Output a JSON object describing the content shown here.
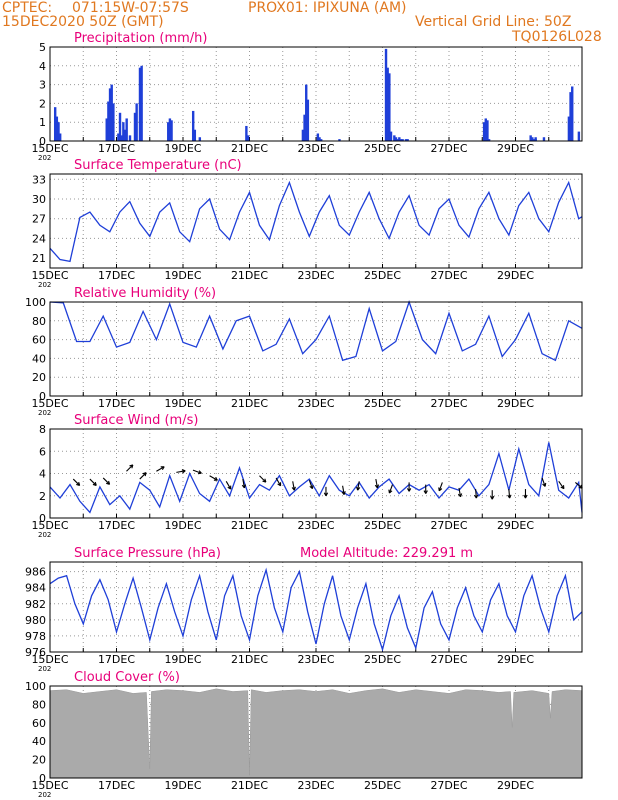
{
  "header": {
    "source": "CPTEC:",
    "coords": "071:15W-07:57S",
    "station": "PROX01: IPIXUNA (AM)",
    "run": "15DEC2020 50Z (GMT)",
    "vgrid": "Vertical Grid Line: 50Z",
    "code": "TQ0126L028"
  },
  "colors": {
    "title": "#e8007a",
    "header": "#e07820",
    "line": "#1f3fd8",
    "bar": "#1f3fd8",
    "cloud": "#aaaaaa"
  },
  "chart_data": [
    {
      "type": "bar",
      "title": "Precipitation (mm/h)",
      "ylim": [
        0,
        5
      ],
      "yticks": [
        "0",
        "1",
        "2",
        "3",
        "4",
        "5"
      ],
      "xticks": [
        "15DEC",
        "17DEC",
        "19DEC",
        "21DEC",
        "23DEC",
        "25DEC",
        "27DEC",
        "29DEC"
      ],
      "xsub": "202",
      "x_days": [
        0.15,
        0.2,
        0.25,
        0.3,
        1.7,
        1.75,
        1.8,
        1.85,
        1.9,
        2.05,
        2.1,
        2.15,
        2.2,
        2.25,
        2.3,
        2.4,
        2.55,
        2.6,
        2.7,
        2.75,
        3.55,
        3.6,
        3.65,
        4.3,
        4.35,
        4.5,
        5.9,
        5.95,
        7.6,
        7.65,
        7.7,
        7.75,
        8.05,
        8.1,
        8.15,
        8.7,
        10.1,
        10.15,
        10.2,
        10.25,
        10.35,
        10.4,
        10.45,
        10.5,
        10.55,
        10.6,
        10.7,
        10.75,
        13.05,
        13.1,
        13.15,
        13.2,
        14.45,
        14.5,
        14.55,
        14.6,
        14.85,
        15.6,
        15.65,
        15.7,
        14.6,
        15.9
      ],
      "values": [
        1.8,
        1.3,
        1.0,
        0.4,
        1.2,
        2.1,
        2.8,
        3.0,
        2.0,
        0.4,
        1.5,
        0.3,
        1.0,
        0.6,
        1.2,
        0.3,
        1.5,
        2.0,
        3.9,
        4.0,
        1.0,
        1.2,
        1.1,
        1.6,
        0.6,
        0.2,
        0.8,
        0.3,
        0.6,
        1.4,
        3.0,
        2.2,
        0.4,
        0.2,
        0.1,
        0.1,
        4.9,
        3.9,
        3.6,
        0.5,
        0.3,
        0.2,
        0.1,
        0.2,
        0.1,
        0.1,
        0.1,
        0.1,
        1.0,
        1.2,
        1.1,
        0.1,
        0.3,
        0.2,
        0.1,
        0.2,
        0.2,
        1.3,
        2.6,
        2.9,
        0.1,
        0.5
      ]
    },
    {
      "type": "line",
      "title": "Surface Temperature (nC)",
      "ylim": [
        19.5,
        33.8
      ],
      "yticks": [
        "21",
        "24",
        "27",
        "30",
        "33"
      ],
      "xticks": [
        "15DEC",
        "17DEC",
        "19DEC",
        "21DEC",
        "23DEC",
        "25DEC",
        "27DEC",
        "29DEC"
      ],
      "xsub": "202",
      "x_days": [
        0.0,
        0.3,
        0.6,
        0.9,
        1.2,
        1.5,
        1.8,
        2.1,
        2.4,
        2.7,
        3.0,
        3.3,
        3.6,
        3.9,
        4.2,
        4.5,
        4.8,
        5.1,
        5.4,
        5.7,
        6.0,
        6.3,
        6.6,
        6.9,
        7.2,
        7.5,
        7.8,
        8.1,
        8.4,
        8.7,
        9.0,
        9.3,
        9.6,
        9.9,
        10.2,
        10.5,
        10.8,
        11.1,
        11.4,
        11.7,
        12.0,
        12.3,
        12.6,
        12.9,
        13.2,
        13.5,
        13.8,
        14.1,
        14.4,
        14.7,
        15.0,
        15.3,
        15.6,
        15.9,
        16.0
      ],
      "values": [
        22.5,
        20.8,
        20.5,
        27.2,
        28.0,
        26.0,
        25.0,
        28.0,
        29.6,
        26.3,
        24.3,
        28.0,
        29.4,
        25.0,
        23.5,
        28.5,
        30.0,
        25.4,
        23.8,
        28.0,
        31.0,
        26.0,
        23.8,
        29.0,
        32.5,
        28.0,
        24.3,
        28.0,
        30.5,
        26.0,
        24.5,
        28.0,
        31.0,
        27.0,
        24.0,
        28.0,
        30.5,
        26.0,
        24.5,
        28.5,
        30.0,
        26.0,
        24.2,
        28.5,
        31.0,
        27.0,
        24.5,
        29.0,
        31.0,
        27.0,
        25.0,
        29.5,
        32.5,
        27.0,
        27.3
      ]
    },
    {
      "type": "line",
      "title": "Relative Humidity (%)",
      "ylim": [
        0,
        100
      ],
      "yticks": [
        "0",
        "20",
        "40",
        "60",
        "80",
        "100"
      ],
      "xticks": [
        "15DEC",
        "17DEC",
        "19DEC",
        "21DEC",
        "23DEC",
        "25DEC",
        "27DEC",
        "29DEC"
      ],
      "xsub": "202",
      "x_days": [
        0.0,
        0.4,
        0.8,
        1.2,
        1.6,
        2.0,
        2.4,
        2.8,
        3.2,
        3.6,
        4.0,
        4.4,
        4.8,
        5.2,
        5.6,
        6.0,
        6.4,
        6.8,
        7.2,
        7.6,
        8.0,
        8.4,
        8.8,
        9.2,
        9.6,
        10.0,
        10.4,
        10.8,
        11.2,
        11.6,
        12.0,
        12.4,
        12.8,
        13.2,
        13.6,
        14.0,
        14.4,
        14.8,
        15.2,
        15.6,
        16.0
      ],
      "values": [
        100,
        99,
        58,
        58,
        85,
        52,
        57,
        90,
        60,
        98,
        57,
        52,
        85,
        50,
        80,
        85,
        48,
        55,
        82,
        45,
        60,
        85,
        38,
        42,
        93,
        48,
        58,
        100,
        60,
        45,
        88,
        48,
        55,
        85,
        42,
        60,
        88,
        45,
        38,
        80,
        72
      ]
    },
    {
      "type": "line",
      "title": "Surface Wind (m/s)",
      "ylim": [
        0,
        8
      ],
      "yticks": [
        "0",
        "2",
        "4",
        "6",
        "8"
      ],
      "xticks": [
        "15DEC",
        "17DEC",
        "19DEC",
        "21DEC",
        "23DEC",
        "25DEC",
        "27DEC",
        "29DEC"
      ],
      "xsub": "202",
      "x_days": [
        0.0,
        0.3,
        0.6,
        0.9,
        1.2,
        1.5,
        1.8,
        2.1,
        2.4,
        2.7,
        3.0,
        3.3,
        3.6,
        3.9,
        4.2,
        4.5,
        4.8,
        5.1,
        5.4,
        5.7,
        6.0,
        6.3,
        6.6,
        6.9,
        7.2,
        7.5,
        7.8,
        8.1,
        8.4,
        8.7,
        9.0,
        9.3,
        9.6,
        9.9,
        10.2,
        10.5,
        10.8,
        11.1,
        11.4,
        11.7,
        12.0,
        12.3,
        12.6,
        12.9,
        13.2,
        13.5,
        13.8,
        14.1,
        14.4,
        14.7,
        15.0,
        15.3,
        15.6,
        15.9,
        16.0
      ],
      "values": [
        2.8,
        1.8,
        3.0,
        1.5,
        0.5,
        2.8,
        1.2,
        2.0,
        0.8,
        3.2,
        2.5,
        1.0,
        3.8,
        1.5,
        4.0,
        2.2,
        1.5,
        3.5,
        2.0,
        4.5,
        1.8,
        3.0,
        2.5,
        3.8,
        2.0,
        2.8,
        3.5,
        2.0,
        3.8,
        2.5,
        2.0,
        3.2,
        1.8,
        2.8,
        3.5,
        2.2,
        3.0,
        2.5,
        3.0,
        1.8,
        2.8,
        2.5,
        3.5,
        2.0,
        3.0,
        5.8,
        2.5,
        6.2,
        3.0,
        2.0,
        6.8,
        2.5,
        1.8,
        3.2,
        0.5
      ],
      "arrows": {
        "x_days": [
          0.7,
          1.2,
          1.6,
          2.3,
          2.7,
          3.2,
          3.8,
          4.3,
          4.8,
          5.3,
          5.8,
          6.3,
          6.8,
          7.3,
          7.8,
          8.3,
          8.8,
          9.3,
          9.8,
          10.3,
          10.8,
          11.3,
          11.8,
          12.3,
          12.8,
          13.3,
          13.8,
          14.3,
          14.8,
          15.3,
          15.8
        ],
        "y": [
          3.5,
          3.5,
          3.6,
          4.2,
          3.5,
          4.2,
          4.1,
          4.3,
          3.8,
          3.3,
          3.5,
          3.8,
          3.6,
          3.3,
          3.4,
          2.8,
          2.9,
          3.3,
          3.5,
          3.0,
          3.2,
          3.0,
          3.2,
          2.7,
          2.6,
          2.5,
          2.6,
          2.6,
          3.6,
          3.3,
          3.2
        ],
        "dir_deg": [
          135,
          135,
          135,
          45,
          45,
          60,
          80,
          110,
          120,
          150,
          170,
          135,
          150,
          170,
          160,
          180,
          170,
          190,
          170,
          200,
          180,
          180,
          200,
          170,
          175,
          180,
          175,
          180,
          160,
          145,
          130
        ]
      }
    },
    {
      "type": "line",
      "title": "Surface Pressure (hPa)",
      "subtitle": "Model Altitude: 229.291  m",
      "ylim": [
        976,
        987.2
      ],
      "yticks": [
        "976",
        "978",
        "980",
        "982",
        "984",
        "986"
      ],
      "xticks": [
        "15DEC",
        "17DEC",
        "19DEC",
        "21DEC",
        "23DEC",
        "25DEC",
        "27DEC",
        "29DEC"
      ],
      "xsub": "202",
      "x_days": [
        0.0,
        0.25,
        0.5,
        0.75,
        1.0,
        1.25,
        1.5,
        1.75,
        2.0,
        2.25,
        2.5,
        2.75,
        3.0,
        3.25,
        3.5,
        3.75,
        4.0,
        4.25,
        4.5,
        4.75,
        5.0,
        5.25,
        5.5,
        5.75,
        6.0,
        6.25,
        6.5,
        6.75,
        7.0,
        7.25,
        7.5,
        7.75,
        8.0,
        8.25,
        8.5,
        8.75,
        9.0,
        9.25,
        9.5,
        9.75,
        10.0,
        10.25,
        10.5,
        10.75,
        11.0,
        11.25,
        11.5,
        11.75,
        12.0,
        12.25,
        12.5,
        12.75,
        13.0,
        13.25,
        13.5,
        13.75,
        14.0,
        14.25,
        14.5,
        14.75,
        15.0,
        15.25,
        15.5,
        15.75,
        16.0
      ],
      "values": [
        984.5,
        985.2,
        985.5,
        982.0,
        979.5,
        983.0,
        985.0,
        982.5,
        978.5,
        982.0,
        985.2,
        981.5,
        977.5,
        981.5,
        984.5,
        981.0,
        978.0,
        982.5,
        985.5,
        981.0,
        977.5,
        983.0,
        985.5,
        980.5,
        977.5,
        983.0,
        986.2,
        981.5,
        978.5,
        984.0,
        986.0,
        981.0,
        977.0,
        982.0,
        985.5,
        980.5,
        977.5,
        981.5,
        984.5,
        979.5,
        976.3,
        980.5,
        983.0,
        979.0,
        976.5,
        981.5,
        983.5,
        979.5,
        977.5,
        981.5,
        984.0,
        980.5,
        978.5,
        982.5,
        984.5,
        980.5,
        978.5,
        983.0,
        985.5,
        981.5,
        978.5,
        983.0,
        985.5,
        980.0,
        981.0
      ]
    },
    {
      "type": "area",
      "title": "Cloud Cover (%)",
      "ylim": [
        0,
        100
      ],
      "yticks": [
        "0",
        "20",
        "40",
        "60",
        "80",
        "100"
      ],
      "xticks": [
        "15DEC",
        "17DEC",
        "19DEC",
        "21DEC",
        "23DEC",
        "25DEC",
        "27DEC",
        "29DEC"
      ],
      "xsub": "202",
      "x_days": [
        0.0,
        0.5,
        1.0,
        1.5,
        2.0,
        2.5,
        2.9,
        3.0,
        3.05,
        3.5,
        4.0,
        4.5,
        5.0,
        5.5,
        5.95,
        6.0,
        6.05,
        6.5,
        7.0,
        7.5,
        8.0,
        8.5,
        9.0,
        9.5,
        10.0,
        10.5,
        11.0,
        11.5,
        12.0,
        12.5,
        13.0,
        13.5,
        13.85,
        13.9,
        13.95,
        14.5,
        15.0,
        15.05,
        15.1,
        15.5,
        16.0
      ],
      "values": [
        95,
        96,
        92,
        94,
        96,
        92,
        93,
        10,
        94,
        96,
        95,
        93,
        97,
        94,
        95,
        3,
        96,
        93,
        95,
        96,
        94,
        96,
        92,
        95,
        97,
        93,
        96,
        94,
        92,
        96,
        95,
        93,
        94,
        55,
        93,
        95,
        92,
        65,
        94,
        96,
        95
      ]
    }
  ]
}
